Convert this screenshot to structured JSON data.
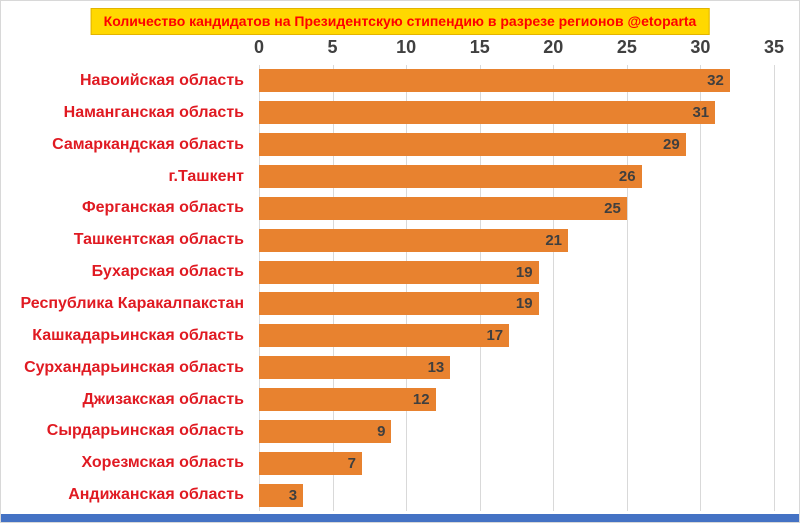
{
  "title": "Количество кандидатов на Президентскую стипендию в разрезе регионов @etoparta",
  "colors": {
    "bar": "#E8822F",
    "title_text": "#FF0000",
    "banner_bg": "#FFD800",
    "label_text": "#E01A22",
    "value_text": "#3F3F3F",
    "axis_text": "#404040",
    "grid": "#D9D9D9",
    "bottom_strip": "#4472C4"
  },
  "chart_data": {
    "type": "bar",
    "orientation": "horizontal",
    "title": "Количество кандидатов на Президентскую стипендию в разрезе регионов @etoparta",
    "categories": [
      "Навоийская область",
      "Наманганская область",
      "Самаркандская область",
      "г.Ташкент",
      "Ферганская область",
      "Ташкентская область",
      "Бухарская область",
      "Республика Каракалпакстан",
      "Кашкадарьинская область",
      "Сурхандарьинская область",
      "Джизакская область",
      "Сырдарьинская область",
      "Хорезмская область",
      "Андижанская область"
    ],
    "values": [
      32,
      31,
      29,
      26,
      25,
      21,
      19,
      19,
      17,
      13,
      12,
      9,
      7,
      3
    ],
    "xlim": [
      0,
      35
    ],
    "ticks": [
      0,
      5,
      10,
      15,
      20,
      25,
      30,
      35
    ],
    "grid": true,
    "value_labels": "inside-end",
    "legend": "none",
    "xlabel": "",
    "ylabel": ""
  }
}
